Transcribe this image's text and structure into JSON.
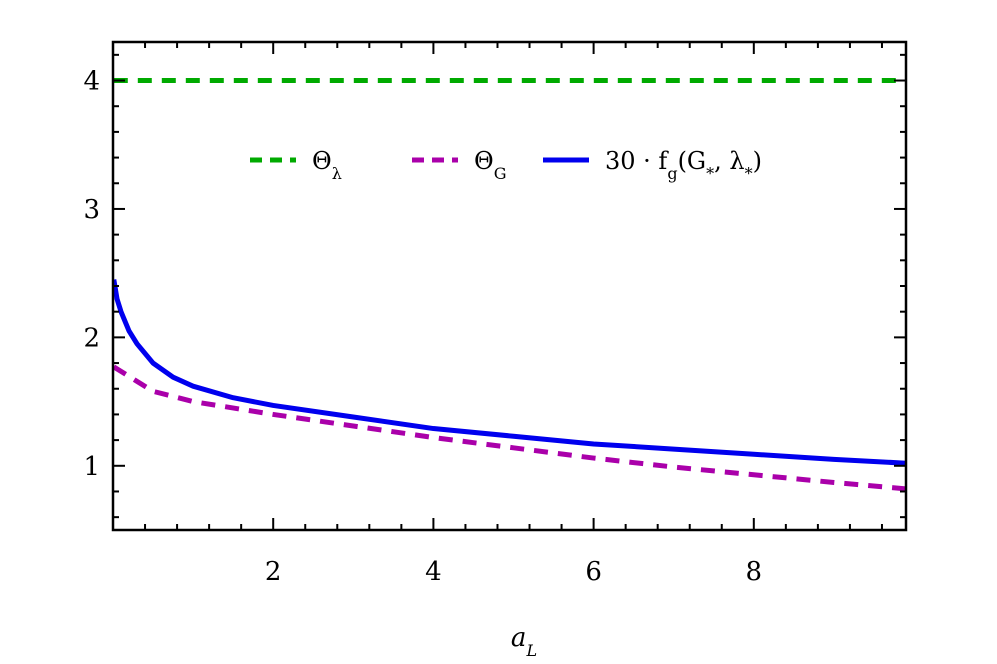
{
  "chart_data": {
    "type": "line",
    "xlabel": "a_L",
    "ylabel": "",
    "xlim": [
      0,
      9.9
    ],
    "ylim": [
      0.5,
      4.3
    ],
    "x_ticks": [
      2,
      4,
      6,
      8
    ],
    "y_ticks": [
      1,
      2,
      3,
      4
    ],
    "grid": false,
    "legend_position": "top-center",
    "series": [
      {
        "name": "Θ_λ",
        "color": "#00aa00",
        "style": "dashed",
        "x": [
          0.01,
          9.9
        ],
        "y": [
          4.0,
          4.0
        ]
      },
      {
        "name": "Θ_G",
        "color": "#aa00aa",
        "style": "dashed",
        "x": [
          0.01,
          0.5,
          1,
          2,
          3,
          4,
          5,
          6,
          7,
          8,
          9,
          9.9
        ],
        "y": [
          1.77,
          1.58,
          1.5,
          1.4,
          1.31,
          1.22,
          1.14,
          1.06,
          0.99,
          0.93,
          0.87,
          0.82
        ]
      },
      {
        "name": "30 · f_g(G_*, λ_*)",
        "color": "#0000ee",
        "style": "solid",
        "x": [
          0.01,
          0.05,
          0.1,
          0.2,
          0.3,
          0.5,
          0.75,
          1,
          1.5,
          2,
          3,
          4,
          5,
          6,
          7,
          8,
          9,
          9.9
        ],
        "y": [
          2.45,
          2.3,
          2.2,
          2.05,
          1.95,
          1.8,
          1.69,
          1.62,
          1.53,
          1.47,
          1.38,
          1.29,
          1.23,
          1.17,
          1.13,
          1.09,
          1.05,
          1.02
        ]
      }
    ]
  }
}
